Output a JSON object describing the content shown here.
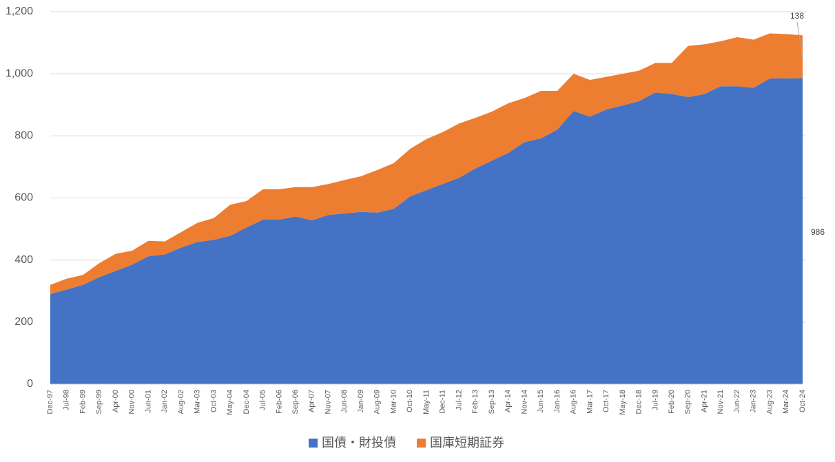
{
  "chart_data": {
    "type": "stacked_area",
    "categories": [
      "Dec-97",
      "Jul-98",
      "Feb-99",
      "Sep-99",
      "Apr-00",
      "Nov-00",
      "Jun-01",
      "Jan-02",
      "Aug-02",
      "Mar-03",
      "Oct-03",
      "May-04",
      "Dec-04",
      "Jul-05",
      "Feb-06",
      "Sep-06",
      "Apr-07",
      "Nov-07",
      "Jun-08",
      "Jan-09",
      "Aug-09",
      "Mar-10",
      "Oct-10",
      "May-11",
      "Dec-11",
      "Jul-12",
      "Feb-13",
      "Sep-13",
      "Apr-14",
      "Nov-14",
      "Jun-15",
      "Jan-16",
      "Aug-16",
      "Mar-17",
      "Oct-17",
      "May-18",
      "Dec-18",
      "Jul-19",
      "Feb-20",
      "Sep-20",
      "Apr-21",
      "Nov-21",
      "Jun-22",
      "Jan-23",
      "Aug-23",
      "Mar-24",
      "Oct-24"
    ],
    "series": [
      {
        "name": "国債・財投債",
        "color": "#4472c4",
        "values": [
          290,
          305,
          320,
          345,
          365,
          385,
          412,
          418,
          440,
          458,
          465,
          478,
          505,
          530,
          530,
          540,
          528,
          545,
          550,
          555,
          553,
          565,
          605,
          625,
          645,
          665,
          695,
          720,
          745,
          780,
          792,
          820,
          880,
          862,
          885,
          898,
          912,
          940,
          935,
          925,
          935,
          960,
          960,
          955,
          985,
          985,
          986
        ]
      },
      {
        "name": "国庫短期証券",
        "color": "#ed7d31",
        "values": [
          30,
          35,
          32,
          45,
          55,
          45,
          50,
          42,
          50,
          62,
          70,
          100,
          85,
          98,
          98,
          95,
          107,
          100,
          108,
          115,
          137,
          147,
          153,
          165,
          167,
          175,
          163,
          158,
          160,
          142,
          153,
          125,
          120,
          118,
          105,
          102,
          98,
          95,
          100,
          165,
          160,
          145,
          158,
          155,
          145,
          143,
          138
        ]
      }
    ],
    "ylim": [
      0,
      1200
    ],
    "yticks": [
      0,
      200,
      400,
      600,
      800,
      {
        "value": 1000,
        "label": "1,000"
      },
      {
        "value": 1200,
        "label": "1,200"
      }
    ],
    "grid": true,
    "legend": "bottom"
  }
}
